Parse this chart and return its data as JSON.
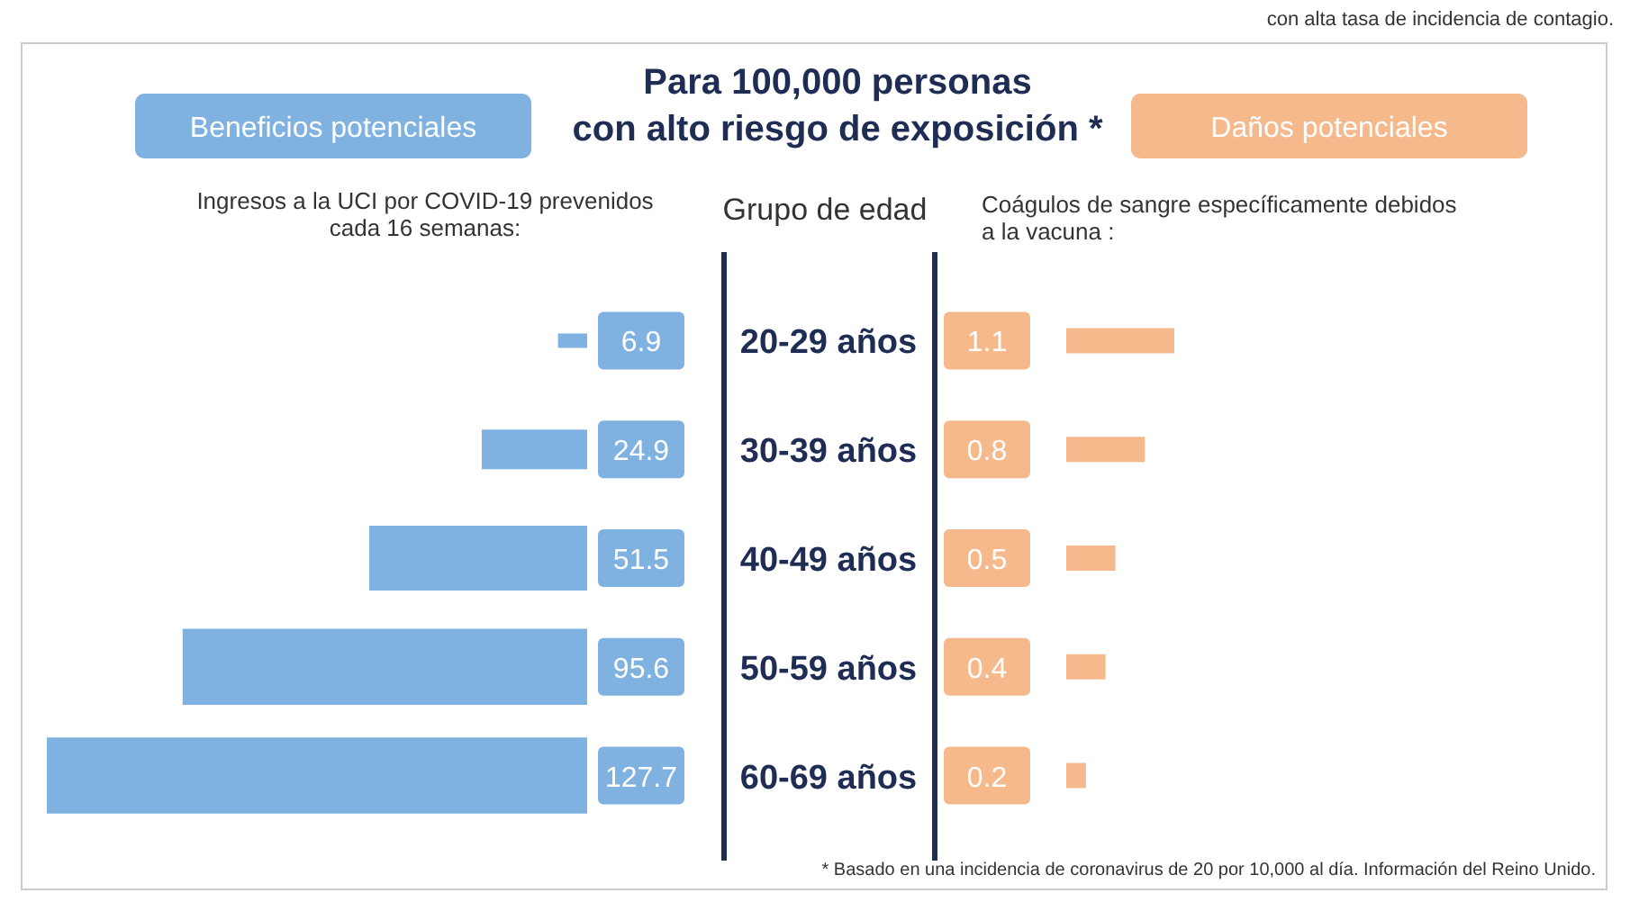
{
  "chart_data": [
    {
      "type": "bar",
      "orientation": "horizontal",
      "title": "Para 100,000 personas\ncon alto riesgo de exposición *",
      "ylabel": "Grupo de edad",
      "categories": [
        "20-29 años",
        "30-39 años",
        "40-49 años",
        "50-59 años",
        "60-69 años"
      ],
      "series": [
        {
          "name": "Beneficios potenciales",
          "color": "#7fb2e0",
          "values": [
            6.9,
            24.9,
            51.5,
            95.6,
            127.7
          ]
        }
      ],
      "data_labels": true,
      "annotations": [
        "Ingresos a la UCI por COVID-19 prevenidos\ncada 16 semanas:",
        "con alta tasa de incidencia de contagio."
      ]
    },
    {
      "type": "bar",
      "orientation": "horizontal",
      "categories": [
        null,
        null,
        null,
        null,
        null
      ],
      "series": [
        {
          "name": "Daños potenciales",
          "color": "#f6b98c",
          "values": [
            1.1,
            0.8,
            0.5,
            0.4,
            0.2
          ]
        }
      ],
      "data_labels": true,
      "annotations": [
        "Coágulos de sangre específicamente debidos\na la vacuna :",
        "* Basado en una incidencia de coronavirus de 20 por 10,000 al día. Información del Reino Unido."
      ]
    }
  ]
}
